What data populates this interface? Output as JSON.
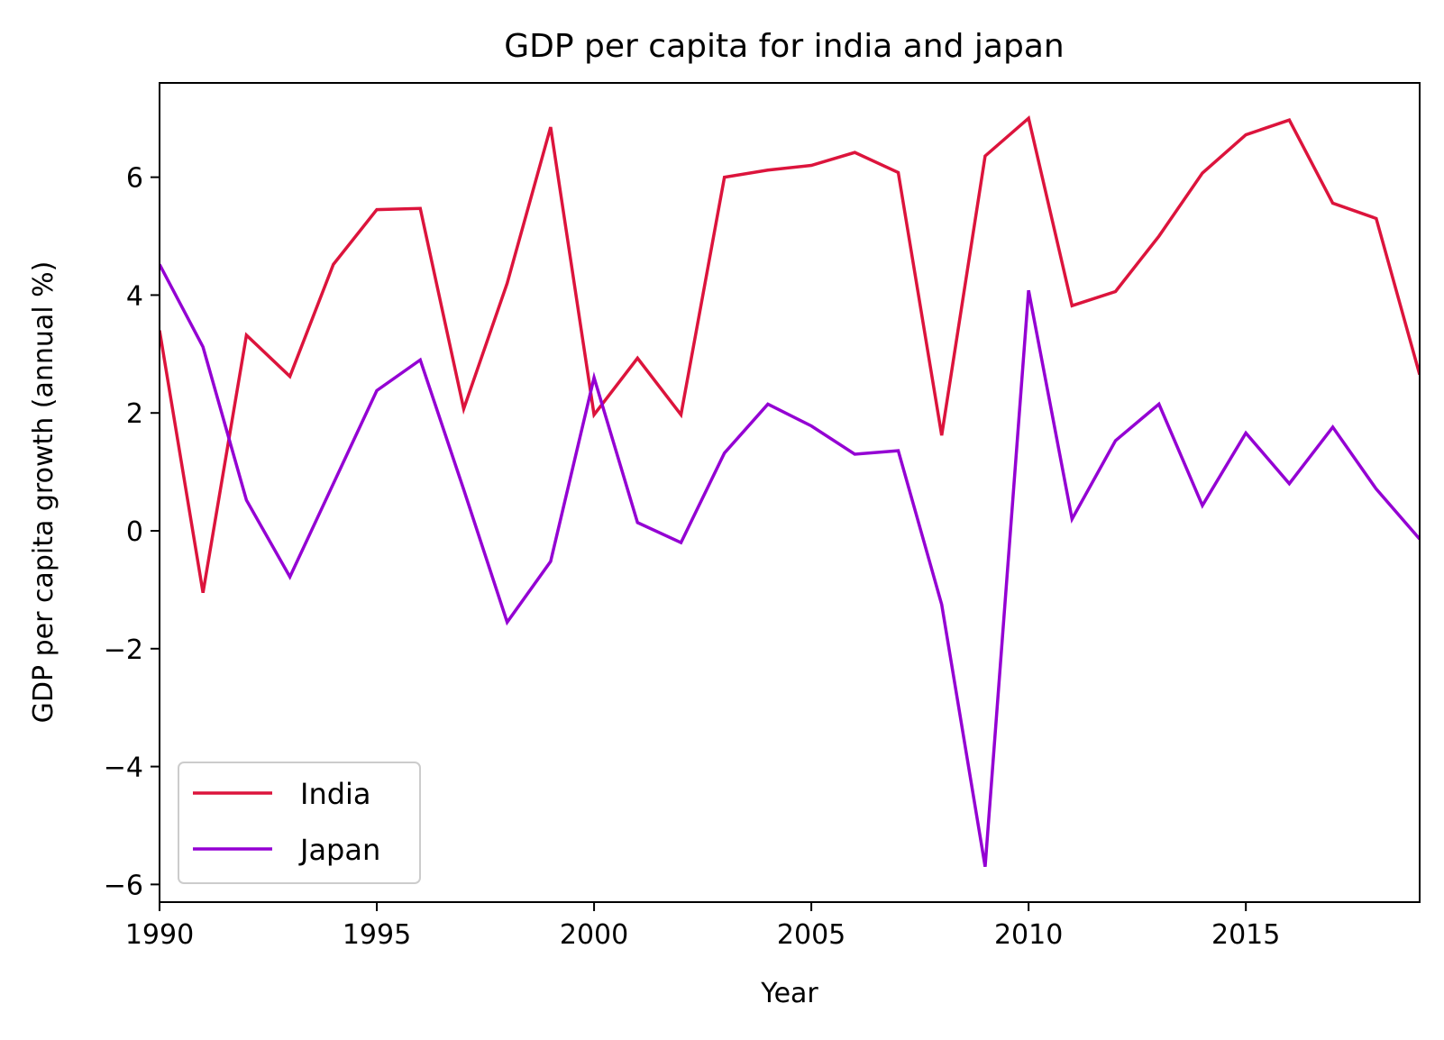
{
  "chart_data": {
    "type": "line",
    "title": "GDP per capita for india and japan",
    "xlabel": "Year",
    "ylabel": "GDP per capita growth (annual %)",
    "xlim": [
      1990,
      2019
    ],
    "ylim": [
      -6.3,
      7.6
    ],
    "x_ticks": [
      1990,
      1995,
      2000,
      2005,
      2010,
      2015
    ],
    "y_ticks": [
      -6,
      -4,
      -2,
      0,
      2,
      4,
      6
    ],
    "grid": false,
    "legend_position": "lower-left",
    "x": [
      1990,
      1991,
      1992,
      1993,
      1994,
      1995,
      1996,
      1997,
      1998,
      1999,
      2000,
      2001,
      2002,
      2003,
      2004,
      2005,
      2006,
      2007,
      2008,
      2009,
      2010,
      2011,
      2012,
      2013,
      2014,
      2015,
      2016,
      2017,
      2018,
      2019
    ],
    "series": [
      {
        "name": "India",
        "color": "#dc143c",
        "values": [
          3.4,
          -1.05,
          3.32,
          2.62,
          4.52,
          5.45,
          5.47,
          2.07,
          4.2,
          6.85,
          1.97,
          2.93,
          1.97,
          6.0,
          6.12,
          6.2,
          6.42,
          6.08,
          1.62,
          6.36,
          7.0,
          3.82,
          4.06,
          5.0,
          6.07,
          6.72,
          6.97,
          5.56,
          5.3,
          2.65
        ]
      },
      {
        "name": "Japan",
        "color": "#9400d3",
        "values": [
          4.52,
          3.12,
          0.52,
          -0.78,
          0.8,
          2.38,
          2.9,
          0.7,
          -1.55,
          -0.52,
          2.6,
          0.14,
          -0.2,
          1.32,
          2.15,
          1.78,
          1.3,
          1.36,
          -1.25,
          -5.7,
          4.08,
          0.2,
          1.53,
          2.15,
          0.43,
          1.66,
          0.8,
          1.76,
          0.71,
          -0.14
        ]
      }
    ]
  }
}
